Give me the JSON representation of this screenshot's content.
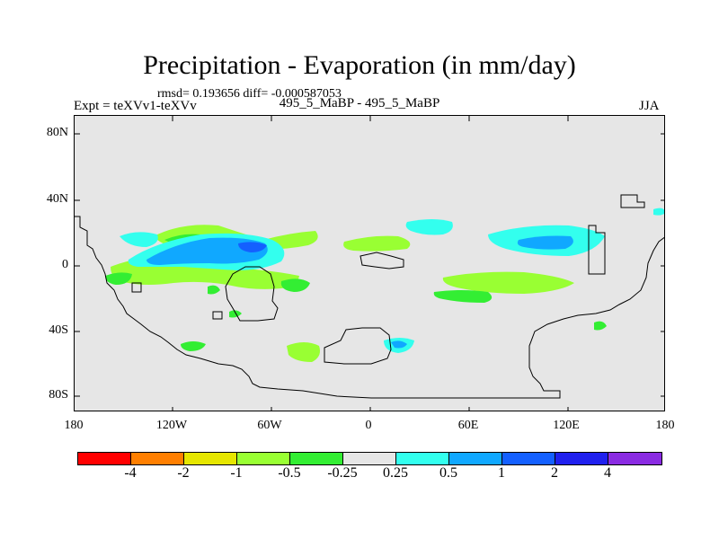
{
  "title": "Precipitation - Evaporation (in mm/day)",
  "stats": "rmsd= 0.193656 diff= -0.000587053",
  "experiment_label": "Expt = teXVv1-teXVv",
  "run_label": "495_5_MaBP - 495_5_MaBP",
  "season": "JJA",
  "lat_ticks": [
    "80N",
    "40N",
    "0",
    "40S",
    "80S"
  ],
  "lon_ticks": [
    "180",
    "120W",
    "60W",
    "0",
    "60E",
    "120E",
    "180"
  ],
  "colorbar": {
    "colors": [
      "#ff0000",
      "#ff7f00",
      "#e6e600",
      "#99ff33",
      "#33ee33",
      "#e6e6e6",
      "#33ffee",
      "#10a8ff",
      "#1460ff",
      "#2020ee",
      "#8a2be2"
    ],
    "labels": [
      "-4",
      "-2",
      "-1",
      "-0.5",
      "-0.25",
      "0.25",
      "0.5",
      "1",
      "2",
      "4"
    ]
  },
  "colors": {
    "background": "#e6e6e6",
    "outline": "#000000",
    "light_green": "#99ff33",
    "green": "#33ee33",
    "cyan": "#33ffee",
    "light_blue": "#10a8ff",
    "blue": "#1460ff"
  }
}
